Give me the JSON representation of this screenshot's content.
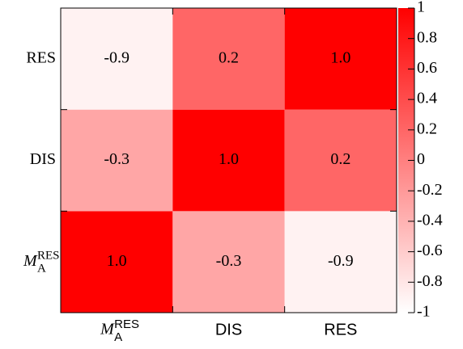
{
  "chart_data": {
    "type": "heatmap",
    "x_categories": [
      {
        "text": "M",
        "sub": "A",
        "sup": "RES"
      },
      "DIS",
      "RES"
    ],
    "y_categories": [
      {
        "text": "M",
        "sub": "A",
        "sup": "RES"
      },
      "DIS",
      "RES"
    ],
    "values": [
      [
        1.0,
        -0.3,
        -0.9
      ],
      [
        -0.3,
        1.0,
        0.2
      ],
      [
        -0.9,
        0.2,
        1.0
      ]
    ],
    "value_labels": [
      [
        "1.0",
        "-0.3",
        "-0.9"
      ],
      [
        "-0.3",
        "1.0",
        "0.2"
      ],
      [
        "-0.9",
        "0.2",
        "1.0"
      ]
    ],
    "colormap": [
      "#ffffff",
      "#ff0000"
    ],
    "clim": [
      -1,
      1
    ],
    "cticks": [
      -1,
      -0.8,
      -0.6,
      -0.4,
      -0.2,
      0,
      0.2,
      0.4,
      0.6,
      0.8,
      1
    ]
  }
}
